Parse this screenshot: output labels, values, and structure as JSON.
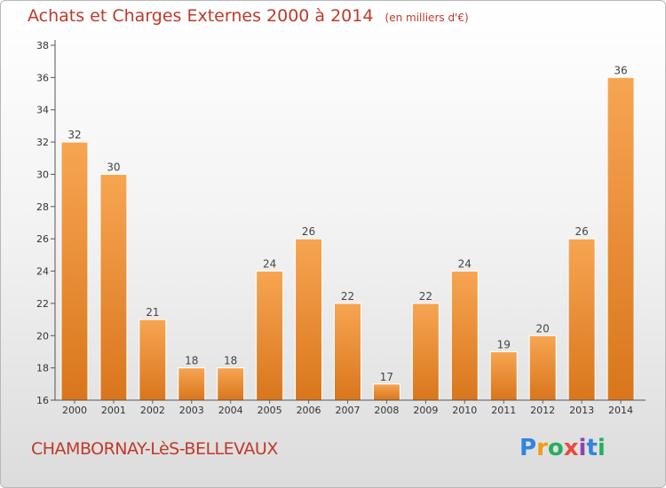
{
  "chart_data": {
    "type": "bar",
    "title": "Achats et Charges Externes 2000 à 2014",
    "subtitle": "(en milliers d'€)",
    "categories": [
      "2000",
      "2001",
      "2002",
      "2003",
      "2004",
      "2005",
      "2006",
      "2007",
      "2008",
      "2009",
      "2010",
      "2011",
      "2012",
      "2013",
      "2014"
    ],
    "values": [
      32,
      30,
      21,
      18,
      18,
      24,
      26,
      22,
      17,
      22,
      24,
      19,
      20,
      26,
      36
    ],
    "ylim": [
      16,
      38
    ],
    "yticks": [
      16,
      18,
      20,
      22,
      24,
      26,
      28,
      30,
      32,
      34,
      36,
      38
    ],
    "grid": false,
    "bar_color": "#f0963c",
    "bar_color_dark": "#d9781e"
  },
  "footer": {
    "commune": "CHAMBORNAY-LèS-BELLEVAUX"
  },
  "logo": {
    "text": "Proxiti",
    "letters": [
      {
        "ch": "P",
        "color": "#2e86de"
      },
      {
        "ch": "r",
        "color": "#f39c12"
      },
      {
        "ch": "o",
        "color": "#27ae60"
      },
      {
        "ch": "x",
        "color": "#e74c3c"
      },
      {
        "ch": "i",
        "color": "#8e44ad"
      },
      {
        "ch": "t",
        "color": "#2e86de"
      },
      {
        "ch": "i",
        "color": "#27ae60"
      }
    ]
  },
  "colors": {
    "title": "#c0392b",
    "axis": "#555555"
  }
}
